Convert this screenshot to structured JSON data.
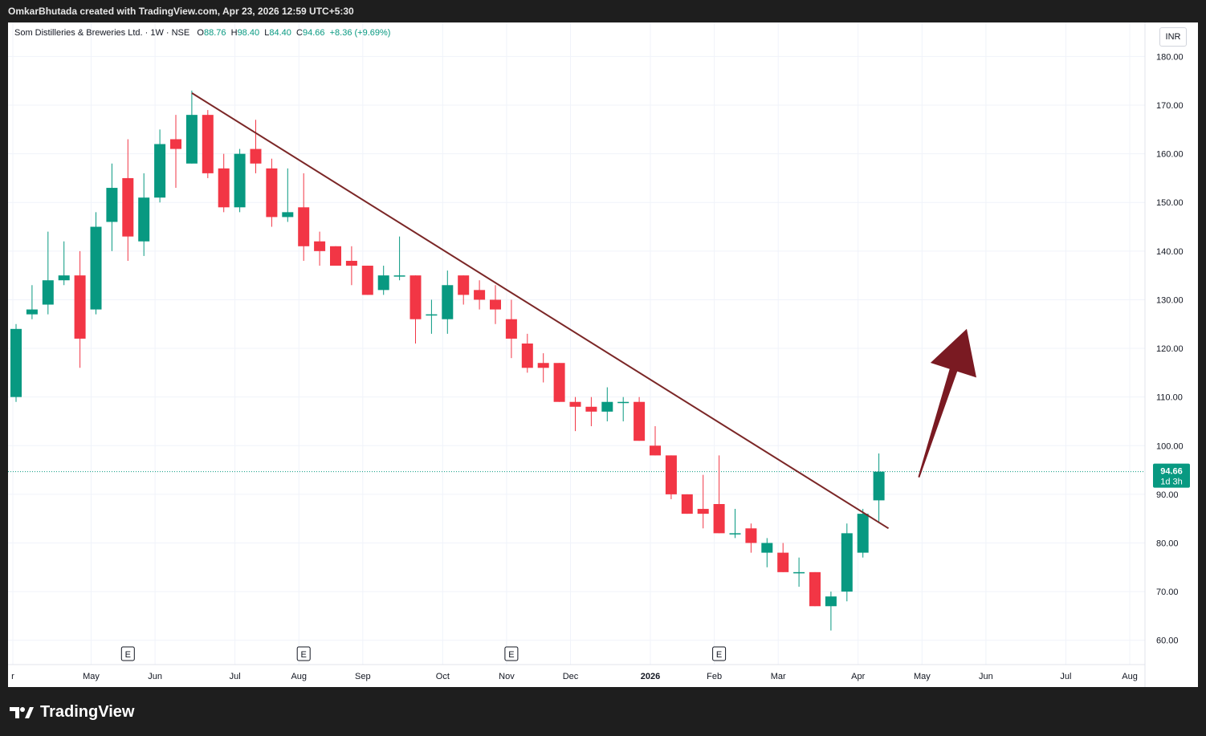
{
  "header": {
    "attribution": "OmkarBhutada created with TradingView.com, Apr 23, 2026 12:59 UTC+5:30"
  },
  "legend": {
    "symbol": "Som Distilleries & Breweries Ltd. · 1W · NSE",
    "o_label": "O",
    "o_value": "88.76",
    "h_label": "H",
    "h_value": "98.40",
    "l_label": "L",
    "l_value": "84.40",
    "c_label": "C",
    "c_value": "94.66",
    "change": "+8.36 (+9.69%)"
  },
  "currency": "INR",
  "price_tag": {
    "price": "94.66",
    "countdown": "1d 3h"
  },
  "footer": {
    "brand": "TradingView"
  },
  "colors": {
    "up": "#089981",
    "down": "#F23645",
    "trendline": "#7B2727",
    "arrow": "#7A1A22",
    "background": "#ffffff"
  },
  "chart_data": {
    "type": "candlestick",
    "title": "Som Distilleries & Breweries Ltd.",
    "interval": "1W",
    "exchange": "NSE",
    "ylim": [
      55,
      187
    ],
    "y_ticks": [
      "60.00",
      "70.00",
      "80.00",
      "90.00",
      "100.00",
      "110.00",
      "120.00",
      "130.00",
      "140.00",
      "150.00",
      "160.00",
      "170.00",
      "180.00"
    ],
    "x_ticks": [
      "r",
      "May",
      "Jun",
      "Jul",
      "Aug",
      "Sep",
      "Oct",
      "Nov",
      "Dec",
      "2026",
      "Feb",
      "Mar",
      "Apr",
      "May",
      "Jun",
      "Jul",
      "Aug"
    ],
    "earnings_marker": "E",
    "earnings_week_index": [
      7,
      18,
      31,
      44
    ],
    "candles": [
      {
        "o": 110,
        "h": 125,
        "l": 109,
        "c": 124
      },
      {
        "o": 127,
        "h": 133,
        "l": 126,
        "c": 128
      },
      {
        "o": 129,
        "h": 144,
        "l": 127,
        "c": 134
      },
      {
        "o": 134,
        "h": 142,
        "l": 133,
        "c": 135
      },
      {
        "o": 135,
        "h": 140,
        "l": 116,
        "c": 122
      },
      {
        "o": 128,
        "h": 148,
        "l": 127,
        "c": 145
      },
      {
        "o": 146,
        "h": 158,
        "l": 140,
        "c": 153
      },
      {
        "o": 155,
        "h": 163,
        "l": 138,
        "c": 143
      },
      {
        "o": 142,
        "h": 156,
        "l": 139,
        "c": 151
      },
      {
        "o": 151,
        "h": 165,
        "l": 150,
        "c": 162
      },
      {
        "o": 163,
        "h": 168,
        "l": 153,
        "c": 161
      },
      {
        "o": 158,
        "h": 173,
        "l": 158,
        "c": 168
      },
      {
        "o": 168,
        "h": 169,
        "l": 155,
        "c": 156
      },
      {
        "o": 157,
        "h": 160,
        "l": 148,
        "c": 149
      },
      {
        "o": 149,
        "h": 161,
        "l": 148,
        "c": 160
      },
      {
        "o": 161,
        "h": 167,
        "l": 156,
        "c": 158
      },
      {
        "o": 157,
        "h": 159,
        "l": 145,
        "c": 147
      },
      {
        "o": 147,
        "h": 157,
        "l": 146,
        "c": 148
      },
      {
        "o": 149,
        "h": 156,
        "l": 138,
        "c": 141
      },
      {
        "o": 142,
        "h": 144,
        "l": 137,
        "c": 140
      },
      {
        "o": 141,
        "h": 141,
        "l": 137,
        "c": 137
      },
      {
        "o": 138,
        "h": 141,
        "l": 133,
        "c": 137
      },
      {
        "o": 137,
        "h": 137,
        "l": 131,
        "c": 131
      },
      {
        "o": 132,
        "h": 137,
        "l": 131,
        "c": 135
      },
      {
        "o": 135,
        "h": 143,
        "l": 134,
        "c": 135
      },
      {
        "o": 135,
        "h": 135,
        "l": 121,
        "c": 126
      },
      {
        "o": 127,
        "h": 130,
        "l": 123,
        "c": 127
      },
      {
        "o": 126,
        "h": 136,
        "l": 123,
        "c": 133
      },
      {
        "o": 135,
        "h": 135,
        "l": 129,
        "c": 131
      },
      {
        "o": 132,
        "h": 134,
        "l": 128,
        "c": 130
      },
      {
        "o": 130,
        "h": 133,
        "l": 125,
        "c": 128
      },
      {
        "o": 126,
        "h": 130,
        "l": 118,
        "c": 122
      },
      {
        "o": 121,
        "h": 123,
        "l": 115,
        "c": 116
      },
      {
        "o": 117,
        "h": 119,
        "l": 113,
        "c": 116
      },
      {
        "o": 117,
        "h": 117,
        "l": 109,
        "c": 109
      },
      {
        "o": 109,
        "h": 110,
        "l": 103,
        "c": 108
      },
      {
        "o": 108,
        "h": 110,
        "l": 104,
        "c": 107
      },
      {
        "o": 107,
        "h": 112,
        "l": 105,
        "c": 109
      },
      {
        "o": 109,
        "h": 110,
        "l": 105,
        "c": 109
      },
      {
        "o": 109,
        "h": 110,
        "l": 101,
        "c": 101
      },
      {
        "o": 100,
        "h": 104,
        "l": 98,
        "c": 98
      },
      {
        "o": 98,
        "h": 98,
        "l": 89,
        "c": 90
      },
      {
        "o": 90,
        "h": 90,
        "l": 86,
        "c": 86
      },
      {
        "o": 87,
        "h": 94,
        "l": 83,
        "c": 86
      },
      {
        "o": 88,
        "h": 98,
        "l": 82,
        "c": 82
      },
      {
        "o": 82,
        "h": 87,
        "l": 81,
        "c": 82
      },
      {
        "o": 83,
        "h": 84,
        "l": 78,
        "c": 80
      },
      {
        "o": 78,
        "h": 81,
        "l": 75,
        "c": 80
      },
      {
        "o": 78,
        "h": 80,
        "l": 74,
        "c": 74
      },
      {
        "o": 74,
        "h": 77,
        "l": 71,
        "c": 74
      },
      {
        "o": 74,
        "h": 74,
        "l": 67,
        "c": 67
      },
      {
        "o": 67,
        "h": 70,
        "l": 62,
        "c": 69
      },
      {
        "o": 70,
        "h": 84,
        "l": 68,
        "c": 82
      },
      {
        "o": 78,
        "h": 87,
        "l": 77,
        "c": 86
      },
      {
        "o": 88.76,
        "h": 98.4,
        "l": 84.4,
        "c": 94.66
      }
    ],
    "last_price": 94.66,
    "trendline": {
      "from": {
        "week": 11,
        "price": 172.5
      },
      "to": {
        "week": 54.6,
        "price": 83
      }
    },
    "arrow": {
      "from": {
        "week": 56.5,
        "price": 93.5
      },
      "to": {
        "week": 59.5,
        "price": 124
      }
    }
  }
}
